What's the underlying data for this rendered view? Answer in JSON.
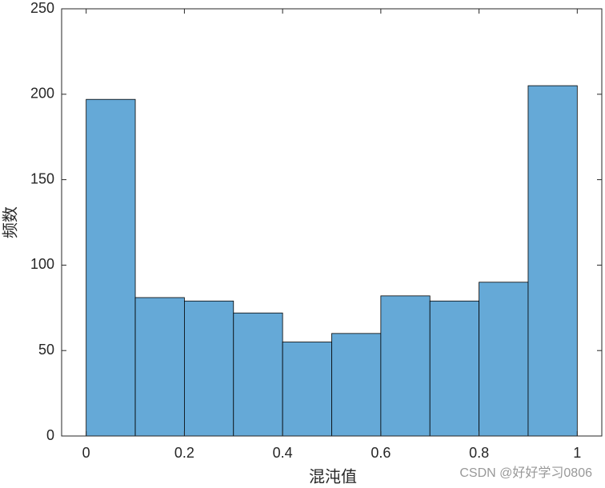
{
  "chart_data": {
    "type": "histogram",
    "xlabel": "混沌值",
    "ylabel": "频数",
    "bins": [
      0,
      0.1,
      0.2,
      0.3,
      0.4,
      0.5,
      0.6,
      0.7,
      0.8,
      0.9,
      1
    ],
    "values": [
      197,
      81,
      79,
      72,
      55,
      60,
      82,
      79,
      90,
      205
    ],
    "color": "#65a9d7",
    "xlim": [
      -0.05,
      1.05
    ],
    "xticks": [
      0,
      0.2,
      0.4,
      0.6,
      0.8,
      1
    ],
    "ylim": [
      0,
      250
    ],
    "yticks": [
      0,
      50,
      100,
      150,
      200,
      250
    ],
    "grid": false,
    "watermark": "CSDN @好好学习0806"
  }
}
